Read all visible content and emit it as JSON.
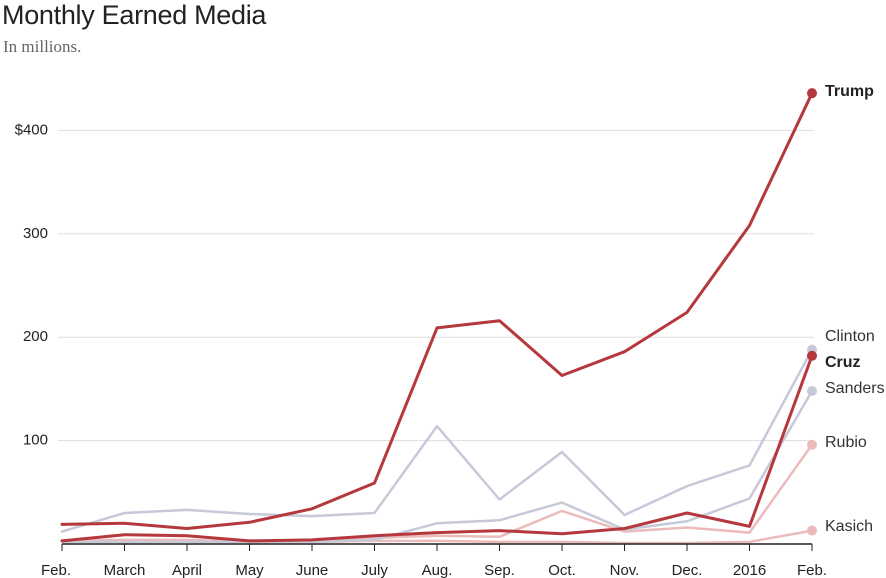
{
  "chart_data": {
    "type": "line",
    "title": "Monthly Earned Media",
    "subtitle": "In millions.",
    "xlabel": "",
    "ylabel": "",
    "ylim": [
      0,
      440
    ],
    "y_ticks": [
      {
        "value": 100,
        "label": "100"
      },
      {
        "value": 200,
        "label": "200"
      },
      {
        "value": 300,
        "label": "300"
      },
      {
        "value": 400,
        "label": "$400"
      }
    ],
    "categories": [
      "Feb.",
      "March",
      "April",
      "May",
      "June",
      "July",
      "Aug.",
      "Sep.",
      "Oct.",
      "Nov.",
      "Dec.",
      "2016",
      "Feb."
    ],
    "series": [
      {
        "name": "Kasich",
        "color": "#ebbbbb",
        "bold": false,
        "values": [
          2,
          3,
          3,
          2,
          2,
          3,
          3,
          2,
          2,
          1,
          1,
          2,
          13
        ]
      },
      {
        "name": "Rubio",
        "color": "#ebbbbb",
        "bold": false,
        "values": [
          3,
          4,
          4,
          2,
          3,
          6,
          8,
          7,
          32,
          12,
          16,
          11,
          96
        ]
      },
      {
        "name": "Sanders",
        "color": "#c6cad8",
        "bold": false,
        "values": [
          2,
          2,
          2,
          2,
          2,
          4,
          20,
          23,
          40,
          14,
          22,
          44,
          148
        ]
      },
      {
        "name": "Clinton",
        "color": "#c6cad8",
        "bold": false,
        "values": [
          12,
          30,
          33,
          29,
          27,
          30,
          114,
          43,
          89,
          28,
          56,
          76,
          188
        ]
      },
      {
        "name": "Cruz",
        "color": "#b5383d",
        "bold": true,
        "values": [
          3,
          9,
          8,
          3,
          4,
          8,
          11,
          13,
          10,
          15,
          30,
          17,
          182
        ]
      },
      {
        "name": "Trump",
        "color": "#b5383d",
        "bold": true,
        "values": [
          19,
          20,
          15,
          21,
          34,
          59,
          209,
          216,
          163,
          186,
          224,
          308,
          436
        ]
      }
    ]
  }
}
